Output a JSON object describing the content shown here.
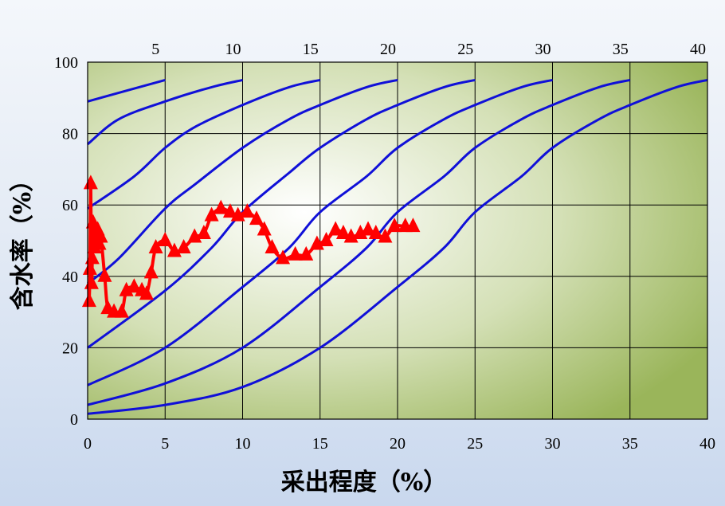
{
  "chart_data": {
    "type": "line",
    "xlabel": "采出程度（%）",
    "ylabel": "含水率（%）",
    "xlim": [
      0,
      40
    ],
    "ylim": [
      0,
      100
    ],
    "x_ticks": [
      0,
      5,
      10,
      15,
      20,
      25,
      30,
      35,
      40
    ],
    "y_ticks": [
      0,
      20,
      40,
      60,
      80,
      100
    ],
    "top_ticks": [
      5,
      10,
      15,
      20,
      25,
      30,
      35,
      40
    ],
    "grid": true,
    "colors": {
      "reference_curves": "#1010d8",
      "measured": "#ff0000",
      "grid": "#000000",
      "plot_bg_light": "#ffffff",
      "plot_bg_dark": "#9ab55a"
    },
    "reference_curves": [
      {
        "label": "5",
        "points": [
          [
            0,
            89
          ],
          [
            5,
            95
          ]
        ]
      },
      {
        "label": "10",
        "points": [
          [
            0,
            77
          ],
          [
            2,
            84
          ],
          [
            5,
            89
          ],
          [
            8,
            93
          ],
          [
            10,
            95
          ]
        ]
      },
      {
        "label": "15",
        "points": [
          [
            0,
            59
          ],
          [
            3,
            68
          ],
          [
            5,
            76
          ],
          [
            7,
            82
          ],
          [
            10,
            88
          ],
          [
            13,
            93
          ],
          [
            15,
            95
          ]
        ]
      },
      {
        "label": "20",
        "points": [
          [
            0,
            38
          ],
          [
            2,
            45
          ],
          [
            5,
            59
          ],
          [
            7,
            66
          ],
          [
            10,
            76
          ],
          [
            13,
            84
          ],
          [
            15,
            88
          ],
          [
            18,
            93
          ],
          [
            20,
            95
          ]
        ]
      },
      {
        "label": "25",
        "points": [
          [
            0,
            20
          ],
          [
            5,
            36
          ],
          [
            8,
            48
          ],
          [
            10,
            58
          ],
          [
            13,
            69
          ],
          [
            15,
            76
          ],
          [
            18,
            84
          ],
          [
            20,
            88
          ],
          [
            23,
            93
          ],
          [
            25,
            95
          ]
        ]
      },
      {
        "label": "30",
        "points": [
          [
            0,
            9.5
          ],
          [
            5,
            20
          ],
          [
            10,
            37
          ],
          [
            13,
            48
          ],
          [
            15,
            58
          ],
          [
            18,
            68
          ],
          [
            20,
            76
          ],
          [
            23,
            84
          ],
          [
            25,
            88
          ],
          [
            28,
            93
          ],
          [
            30,
            95
          ]
        ]
      },
      {
        "label": "35",
        "points": [
          [
            0,
            4
          ],
          [
            5,
            10
          ],
          [
            10,
            20
          ],
          [
            15,
            37
          ],
          [
            18,
            48
          ],
          [
            20,
            58
          ],
          [
            23,
            68
          ],
          [
            25,
            76
          ],
          [
            28,
            84
          ],
          [
            30,
            88
          ],
          [
            33,
            93
          ],
          [
            35,
            95
          ]
        ]
      },
      {
        "label": "40",
        "points": [
          [
            0,
            1.5
          ],
          [
            5,
            4
          ],
          [
            10,
            9
          ],
          [
            15,
            20
          ],
          [
            20,
            37
          ],
          [
            23,
            48
          ],
          [
            25,
            58
          ],
          [
            28,
            68
          ],
          [
            30,
            76
          ],
          [
            33,
            84
          ],
          [
            35,
            88
          ],
          [
            38,
            93
          ],
          [
            40,
            95
          ]
        ]
      }
    ],
    "series": [
      {
        "points": [
          [
            0.1,
            33
          ],
          [
            0.15,
            42
          ],
          [
            0.2,
            66
          ],
          [
            0.25,
            38
          ],
          [
            0.3,
            45
          ],
          [
            0.35,
            55
          ],
          [
            0.45,
            48
          ],
          [
            0.55,
            50
          ],
          [
            0.65,
            53
          ],
          [
            0.75,
            49
          ],
          [
            0.85,
            51
          ],
          [
            1.1,
            40
          ],
          [
            1.3,
            31
          ],
          [
            1.7,
            30
          ],
          [
            2.2,
            30
          ],
          [
            2.5,
            36
          ],
          [
            3.0,
            37
          ],
          [
            3.5,
            36
          ],
          [
            3.8,
            35
          ],
          [
            4.1,
            41
          ],
          [
            4.4,
            48
          ],
          [
            5.0,
            50
          ],
          [
            5.6,
            47
          ],
          [
            6.2,
            48
          ],
          [
            6.9,
            51
          ],
          [
            7.5,
            52
          ],
          [
            8.0,
            57
          ],
          [
            8.6,
            59
          ],
          [
            9.2,
            58
          ],
          [
            9.7,
            57
          ],
          [
            10.3,
            58
          ],
          [
            10.9,
            56
          ],
          [
            11.4,
            53
          ],
          [
            11.9,
            48
          ],
          [
            12.6,
            45
          ],
          [
            13.4,
            46
          ],
          [
            14.1,
            46
          ],
          [
            14.8,
            49
          ],
          [
            15.4,
            50
          ],
          [
            16.0,
            53
          ],
          [
            16.5,
            52
          ],
          [
            17.0,
            51
          ],
          [
            17.6,
            52
          ],
          [
            18.1,
            53
          ],
          [
            18.6,
            52
          ],
          [
            19.2,
            51
          ],
          [
            19.8,
            54
          ],
          [
            20.5,
            54
          ],
          [
            21.0,
            54
          ]
        ]
      }
    ]
  }
}
